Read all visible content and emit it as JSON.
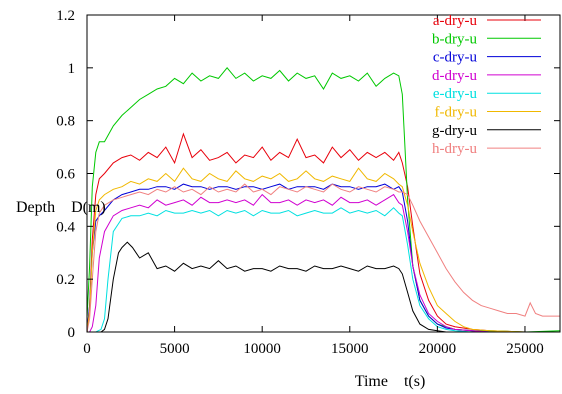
{
  "chart_data": {
    "type": "line",
    "title": "",
    "xlabel": "Time    t(s)",
    "ylabel": "Depth    D(m)",
    "xlim": [
      0,
      27000
    ],
    "ylim": [
      0,
      1.2
    ],
    "xticks": [
      0,
      5000,
      10000,
      15000,
      20000,
      25000
    ],
    "yticks": [
      0,
      0.2,
      0.4,
      0.6,
      0.8,
      1,
      1.2
    ],
    "xtick_labels": [
      "0",
      "5000",
      "10000",
      "15000",
      "20000",
      "25000"
    ],
    "ytick_labels": [
      "0",
      "0.2",
      "0.4",
      "0.6",
      "0.8",
      "1",
      "1.2"
    ],
    "grid": false,
    "legend_position": "top-right",
    "series": [
      {
        "name": "a-dry-u",
        "color": "#e8000b",
        "x": [
          0,
          150,
          300,
          500,
          700,
          1000,
          1500,
          2000,
          2500,
          3000,
          3500,
          4000,
          4500,
          5000,
          5500,
          6000,
          6500,
          7000,
          7500,
          8000,
          8500,
          9000,
          9500,
          10000,
          10500,
          11000,
          11500,
          12000,
          12500,
          13000,
          13500,
          14000,
          14500,
          15000,
          15500,
          16000,
          16500,
          17000,
          17500,
          17800,
          18000,
          18300,
          18600,
          19000,
          19500,
          20000,
          20500,
          21000,
          22000,
          23000,
          25000,
          27000
        ],
        "y": [
          0,
          0.1,
          0.35,
          0.52,
          0.58,
          0.6,
          0.64,
          0.66,
          0.67,
          0.65,
          0.68,
          0.66,
          0.7,
          0.64,
          0.75,
          0.66,
          0.69,
          0.65,
          0.66,
          0.68,
          0.64,
          0.67,
          0.66,
          0.7,
          0.65,
          0.68,
          0.66,
          0.73,
          0.66,
          0.67,
          0.64,
          0.7,
          0.66,
          0.69,
          0.65,
          0.68,
          0.66,
          0.68,
          0.65,
          0.68,
          0.64,
          0.55,
          0.4,
          0.22,
          0.12,
          0.06,
          0.03,
          0.02,
          0.01,
          0.005,
          0,
          0
        ]
      },
      {
        "name": "b-dry-u",
        "color": "#00c800",
        "x": [
          0,
          150,
          300,
          500,
          700,
          1000,
          1500,
          2000,
          2500,
          3000,
          3500,
          4000,
          4500,
          5000,
          5500,
          6000,
          6500,
          7000,
          7500,
          8000,
          8500,
          9000,
          9500,
          10000,
          10500,
          11000,
          11500,
          12000,
          12500,
          13000,
          13500,
          14000,
          14500,
          15000,
          15500,
          16000,
          16500,
          17000,
          17500,
          17800,
          18000,
          18300,
          18600,
          19000,
          19500,
          20000,
          20500,
          21000,
          22000,
          23000,
          25000,
          27000
        ],
        "y": [
          0.05,
          0.25,
          0.55,
          0.68,
          0.72,
          0.72,
          0.78,
          0.82,
          0.85,
          0.88,
          0.9,
          0.92,
          0.93,
          0.96,
          0.94,
          0.98,
          0.95,
          0.97,
          0.96,
          1.0,
          0.96,
          0.98,
          0.95,
          0.97,
          0.96,
          0.99,
          0.95,
          0.98,
          0.96,
          0.97,
          0.92,
          0.98,
          0.96,
          0.97,
          0.95,
          0.98,
          0.93,
          0.96,
          0.98,
          0.97,
          0.9,
          0.5,
          0.25,
          0.12,
          0.06,
          0.03,
          0.02,
          0.01,
          0.005,
          0.005,
          0,
          0.005
        ]
      },
      {
        "name": "c-dry-u",
        "color": "#0000d8",
        "x": [
          0,
          150,
          300,
          500,
          700,
          1000,
          1500,
          2000,
          2500,
          3000,
          3500,
          4000,
          4500,
          5000,
          5500,
          6000,
          6500,
          7000,
          7500,
          8000,
          8500,
          9000,
          9500,
          10000,
          10500,
          11000,
          11500,
          12000,
          12500,
          13000,
          13500,
          14000,
          14500,
          15000,
          15500,
          16000,
          16500,
          17000,
          17500,
          17800,
          18000,
          18300,
          18600,
          19000,
          19500,
          20000,
          20500,
          21000,
          22000,
          23000,
          25000,
          27000
        ],
        "y": [
          0,
          0.1,
          0.3,
          0.42,
          0.44,
          0.46,
          0.5,
          0.52,
          0.53,
          0.54,
          0.54,
          0.55,
          0.55,
          0.54,
          0.56,
          0.55,
          0.55,
          0.54,
          0.55,
          0.55,
          0.54,
          0.55,
          0.55,
          0.54,
          0.55,
          0.56,
          0.54,
          0.55,
          0.55,
          0.55,
          0.54,
          0.56,
          0.55,
          0.55,
          0.54,
          0.55,
          0.55,
          0.56,
          0.54,
          0.55,
          0.53,
          0.42,
          0.25,
          0.12,
          0.06,
          0.03,
          0.015,
          0.01,
          0.005,
          0,
          0,
          0
        ]
      },
      {
        "name": "d-dry-u",
        "color": "#d000d0",
        "x": [
          0,
          150,
          300,
          500,
          700,
          1000,
          1500,
          2000,
          2500,
          3000,
          3500,
          4000,
          4500,
          5000,
          5500,
          6000,
          6500,
          7000,
          7500,
          8000,
          8500,
          9000,
          9500,
          10000,
          10500,
          11000,
          11500,
          12000,
          12500,
          13000,
          13500,
          14000,
          14500,
          15000,
          15500,
          16000,
          16500,
          17000,
          17500,
          17800,
          18000,
          18300,
          18600,
          19000,
          19500,
          20000,
          20500,
          21000,
          22000,
          23000,
          25000,
          27000
        ],
        "y": [
          0,
          0,
          0.02,
          0.1,
          0.28,
          0.38,
          0.44,
          0.46,
          0.47,
          0.48,
          0.47,
          0.5,
          0.48,
          0.49,
          0.5,
          0.48,
          0.51,
          0.49,
          0.49,
          0.5,
          0.49,
          0.5,
          0.48,
          0.52,
          0.49,
          0.49,
          0.5,
          0.48,
          0.5,
          0.49,
          0.5,
          0.48,
          0.51,
          0.49,
          0.49,
          0.5,
          0.48,
          0.5,
          0.52,
          0.49,
          0.48,
          0.38,
          0.25,
          0.14,
          0.07,
          0.04,
          0.02,
          0.01,
          0.005,
          0,
          0,
          0
        ]
      },
      {
        "name": "e-dry-u",
        "color": "#00e0e0",
        "x": [
          0,
          500,
          800,
          1000,
          1200,
          1500,
          2000,
          2500,
          3000,
          3500,
          4000,
          4500,
          5000,
          5500,
          6000,
          6500,
          7000,
          7500,
          8000,
          8500,
          9000,
          9500,
          10000,
          10500,
          11000,
          11500,
          12000,
          12500,
          13000,
          13500,
          14000,
          14500,
          15000,
          15500,
          16000,
          16500,
          17000,
          17500,
          17800,
          18000,
          18300,
          18600,
          19000,
          19500,
          20000,
          20500,
          21000,
          22000,
          23000,
          25000,
          27000
        ],
        "y": [
          0,
          0,
          0.01,
          0.05,
          0.2,
          0.38,
          0.43,
          0.44,
          0.44,
          0.45,
          0.44,
          0.46,
          0.45,
          0.45,
          0.46,
          0.45,
          0.46,
          0.44,
          0.46,
          0.45,
          0.46,
          0.44,
          0.46,
          0.45,
          0.45,
          0.46,
          0.44,
          0.45,
          0.46,
          0.45,
          0.45,
          0.47,
          0.45,
          0.46,
          0.45,
          0.46,
          0.44,
          0.47,
          0.45,
          0.44,
          0.33,
          0.2,
          0.1,
          0.05,
          0.02,
          0.01,
          0.005,
          0,
          0,
          0,
          0
        ]
      },
      {
        "name": "f-dry-u",
        "color": "#f0b800",
        "x": [
          0,
          150,
          300,
          500,
          700,
          1000,
          1500,
          2000,
          2500,
          3000,
          3500,
          4000,
          4500,
          5000,
          5500,
          6000,
          6500,
          7000,
          7500,
          8000,
          8500,
          9000,
          9500,
          10000,
          10500,
          11000,
          11500,
          12000,
          12500,
          13000,
          13500,
          14000,
          14500,
          15000,
          15500,
          16000,
          16500,
          17000,
          17500,
          17800,
          18000,
          18300,
          18600,
          19000,
          19500,
          20000,
          20500,
          21000,
          21500,
          22000,
          23000,
          25000,
          27000
        ],
        "y": [
          0,
          0.08,
          0.3,
          0.46,
          0.5,
          0.52,
          0.54,
          0.55,
          0.57,
          0.56,
          0.58,
          0.57,
          0.6,
          0.57,
          0.62,
          0.58,
          0.57,
          0.6,
          0.58,
          0.57,
          0.61,
          0.58,
          0.57,
          0.59,
          0.58,
          0.6,
          0.57,
          0.58,
          0.61,
          0.58,
          0.57,
          0.59,
          0.58,
          0.57,
          0.62,
          0.58,
          0.57,
          0.6,
          0.58,
          0.56,
          0.55,
          0.48,
          0.38,
          0.26,
          0.17,
          0.1,
          0.07,
          0.04,
          0.02,
          0.01,
          0.005,
          0,
          0
        ]
      },
      {
        "name": "g-dry-u",
        "color": "#000000",
        "x": [
          0,
          800,
          1000,
          1200,
          1500,
          1800,
          2000,
          2300,
          2600,
          3000,
          3500,
          4000,
          4500,
          5000,
          5500,
          6000,
          6500,
          7000,
          7500,
          8000,
          8500,
          9000,
          9500,
          10000,
          10500,
          11000,
          11500,
          12000,
          12500,
          13000,
          13500,
          14000,
          14500,
          15000,
          15500,
          16000,
          16500,
          17000,
          17500,
          17800,
          18000,
          18300,
          18600,
          19000,
          19500,
          20000,
          20500,
          21000,
          22000,
          23000,
          25000,
          27000
        ],
        "y": [
          0,
          0,
          0.01,
          0.05,
          0.2,
          0.3,
          0.32,
          0.34,
          0.32,
          0.28,
          0.3,
          0.24,
          0.25,
          0.23,
          0.26,
          0.24,
          0.25,
          0.24,
          0.27,
          0.24,
          0.25,
          0.23,
          0.24,
          0.24,
          0.23,
          0.25,
          0.24,
          0.24,
          0.23,
          0.25,
          0.24,
          0.24,
          0.25,
          0.24,
          0.23,
          0.25,
          0.24,
          0.24,
          0.25,
          0.24,
          0.22,
          0.15,
          0.08,
          0.03,
          0.01,
          0.005,
          0,
          0,
          0,
          0,
          0,
          0
        ]
      },
      {
        "name": "h-dry-u",
        "color": "#f08080",
        "x": [
          0,
          150,
          300,
          500,
          700,
          1000,
          1500,
          2000,
          2500,
          3000,
          3500,
          4000,
          4500,
          5000,
          5500,
          6000,
          6500,
          7000,
          7500,
          8000,
          8500,
          9000,
          9500,
          10000,
          10500,
          11000,
          11500,
          12000,
          12500,
          13000,
          13500,
          14000,
          14500,
          15000,
          15500,
          16000,
          16500,
          17000,
          17500,
          17800,
          18000,
          18300,
          18600,
          19000,
          19500,
          20000,
          20500,
          21000,
          21500,
          22000,
          22500,
          23000,
          23500,
          24000,
          24500,
          25000,
          25300,
          25600,
          26000,
          26500,
          27000
        ],
        "y": [
          0,
          0.05,
          0.2,
          0.38,
          0.45,
          0.48,
          0.5,
          0.51,
          0.52,
          0.53,
          0.52,
          0.54,
          0.53,
          0.55,
          0.53,
          0.54,
          0.52,
          0.55,
          0.53,
          0.54,
          0.53,
          0.56,
          0.53,
          0.54,
          0.52,
          0.55,
          0.54,
          0.53,
          0.55,
          0.54,
          0.53,
          0.56,
          0.54,
          0.53,
          0.55,
          0.54,
          0.53,
          0.55,
          0.54,
          0.53,
          0.53,
          0.52,
          0.48,
          0.42,
          0.36,
          0.3,
          0.24,
          0.19,
          0.15,
          0.12,
          0.1,
          0.09,
          0.08,
          0.07,
          0.07,
          0.06,
          0.11,
          0.07,
          0.06,
          0.06,
          0.06
        ]
      }
    ]
  }
}
